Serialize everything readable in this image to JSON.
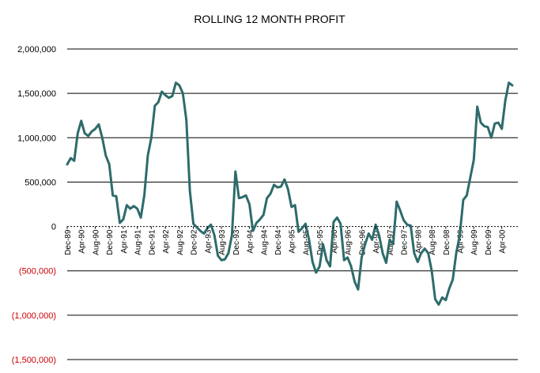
{
  "colors": {
    "background": "#ffffff",
    "line": "#2e6b6b",
    "grid": "#000000",
    "negative_label": "#cc0000",
    "positive_label": "#000000"
  },
  "chart_data": {
    "type": "line",
    "title": "ROLLING 12 MONTH PROFIT",
    "xlabel": "",
    "ylabel": "",
    "ylim": [
      -1500000,
      2000000
    ],
    "grid": "horizontal",
    "legend": "none",
    "y_ticks": [
      {
        "value": 2000000,
        "label": "2,000,000",
        "negative": false
      },
      {
        "value": 1500000,
        "label": "1,500,000",
        "negative": false
      },
      {
        "value": 1000000,
        "label": "1,000,000",
        "negative": false
      },
      {
        "value": 500000,
        "label": "500,000",
        "negative": false
      },
      {
        "value": 0,
        "label": "0",
        "negative": false
      },
      {
        "value": -500000,
        "label": "(500,000)",
        "negative": true
      },
      {
        "value": -1000000,
        "label": "(1,000,000)",
        "negative": true
      },
      {
        "value": -1500000,
        "label": "(1,500,000)",
        "negative": true
      }
    ],
    "x_tick_labels": [
      {
        "index": 0,
        "label": "Dec-89"
      },
      {
        "index": 4,
        "label": "Apr-90"
      },
      {
        "index": 8,
        "label": "Aug-90"
      },
      {
        "index": 12,
        "label": "Dec-90"
      },
      {
        "index": 16,
        "label": "Apr-91"
      },
      {
        "index": 20,
        "label": "Aug-91"
      },
      {
        "index": 24,
        "label": "Dec-91"
      },
      {
        "index": 28,
        "label": "Apr-92"
      },
      {
        "index": 32,
        "label": "Aug-92"
      },
      {
        "index": 36,
        "label": "Dec-92"
      },
      {
        "index": 40,
        "label": "Apr-93"
      },
      {
        "index": 44,
        "label": "Aug-93"
      },
      {
        "index": 48,
        "label": "Dec-93"
      },
      {
        "index": 52,
        "label": "Apr-94"
      },
      {
        "index": 56,
        "label": "Aug-94"
      },
      {
        "index": 60,
        "label": "Dec-94"
      },
      {
        "index": 64,
        "label": "Apr-95"
      },
      {
        "index": 68,
        "label": "Aug-95"
      },
      {
        "index": 72,
        "label": "Dec-95"
      },
      {
        "index": 76,
        "label": "Apr-96"
      },
      {
        "index": 80,
        "label": "Aug-96"
      },
      {
        "index": 84,
        "label": "Dec-96"
      },
      {
        "index": 88,
        "label": "Apr-97"
      },
      {
        "index": 92,
        "label": "Aug-97"
      },
      {
        "index": 96,
        "label": "Dec-97"
      },
      {
        "index": 100,
        "label": "Apr-98"
      },
      {
        "index": 104,
        "label": "Aug-98"
      },
      {
        "index": 108,
        "label": "Dec-98"
      },
      {
        "index": 112,
        "label": "Apr-99"
      },
      {
        "index": 116,
        "label": "Aug-99"
      },
      {
        "index": 120,
        "label": "Dec-99"
      },
      {
        "index": 124,
        "label": "Apr-00"
      }
    ],
    "series": [
      {
        "values": [
          700000,
          770000,
          740000,
          1050000,
          1190000,
          1050000,
          1020000,
          1070000,
          1100000,
          1150000,
          1000000,
          800000,
          700000,
          350000,
          340000,
          40000,
          80000,
          240000,
          200000,
          230000,
          200000,
          100000,
          350000,
          800000,
          1000000,
          1360000,
          1400000,
          1520000,
          1480000,
          1450000,
          1470000,
          1620000,
          1590000,
          1500000,
          1200000,
          400000,
          30000,
          -10000,
          -50000,
          -80000,
          -20000,
          20000,
          -100000,
          -330000,
          -380000,
          -370000,
          -300000,
          -100000,
          620000,
          320000,
          330000,
          350000,
          250000,
          -50000,
          40000,
          80000,
          130000,
          320000,
          370000,
          470000,
          440000,
          450000,
          530000,
          420000,
          220000,
          240000,
          -60000,
          -20000,
          30000,
          -150000,
          -400000,
          -520000,
          -450000,
          -200000,
          -380000,
          -450000,
          50000,
          100000,
          30000,
          -380000,
          -350000,
          -450000,
          -620000,
          -710000,
          -350000,
          -200000,
          -80000,
          -150000,
          20000,
          -100000,
          -300000,
          -410000,
          -150000,
          -200000,
          280000,
          180000,
          70000,
          20000,
          10000,
          -300000,
          -400000,
          -300000,
          -250000,
          -300000,
          -500000,
          -820000,
          -880000,
          -800000,
          -830000,
          -700000,
          -600000,
          -300000,
          -100000,
          300000,
          350000,
          550000,
          750000,
          1350000,
          1170000,
          1130000,
          1120000,
          1000000,
          1160000,
          1170000,
          1100000,
          1420000,
          1620000,
          1590000
        ]
      }
    ]
  }
}
